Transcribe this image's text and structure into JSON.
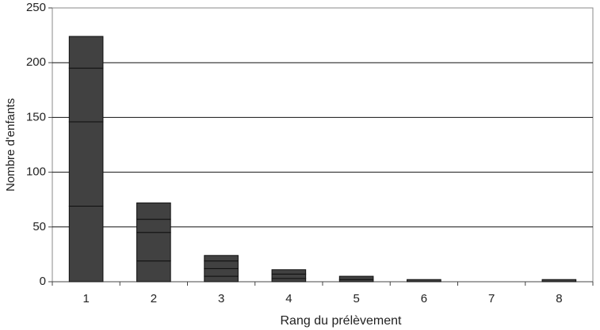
{
  "chart_data": {
    "type": "stacked_bar",
    "xlabel": "Rang du prélèvement",
    "ylabel": "Nombre d'enfants",
    "categories": [
      "1",
      "2",
      "3",
      "4",
      "5",
      "6",
      "7",
      "8"
    ],
    "series": [
      {
        "color": "#414141",
        "values": [
          69,
          19,
          5,
          3,
          2,
          2,
          0,
          2
        ]
      },
      {
        "color": "#414141",
        "values": [
          77,
          26,
          7,
          4,
          3,
          0,
          0,
          0
        ]
      },
      {
        "color": "#414141",
        "values": [
          49,
          12,
          7,
          4,
          0,
          0,
          0,
          0
        ]
      },
      {
        "color": "#414141",
        "values": [
          29,
          15,
          5,
          0,
          0,
          0,
          0,
          0
        ]
      }
    ],
    "ylim": [
      0,
      250
    ],
    "yticks": [
      0,
      50,
      100,
      150,
      200,
      250
    ],
    "grid": true
  }
}
